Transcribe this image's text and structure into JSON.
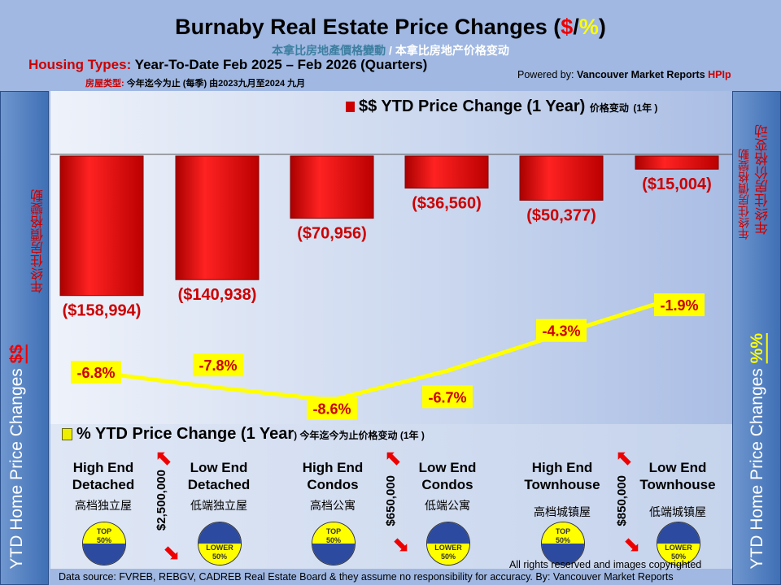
{
  "header": {
    "title": "Burnaby Real Estate Price Changes (",
    "title_dollar": "$",
    "title_slash": "/",
    "title_pct": "%",
    "title_end": ")",
    "subtitle_trad": "本拿比房地產價格變動",
    "subtitle_simp": " / 本拿比房地产价格变动",
    "housing_label": "Housing Types:",
    "housing_text": " Year-To-Date Feb 2025 – Feb 2026 (Quarters)",
    "cn_label": "房屋类型:",
    "cn_text": " 今年迄今为止  (每季) 由2023九月至2024 九月",
    "powered_prefix": "Powered by: ",
    "powered_name": "Vancouver Market Reports ",
    "powered_hpi": "HPIp"
  },
  "side": {
    "left_en": "YTD Home Price Changes ",
    "left_sym": "$$",
    "left_cn1": "年终住房價格變動",
    "left_cn2": "年终住房价格变动",
    "right_en": "YTD Home Price  Changes ",
    "right_sym": "%%",
    "right_cn1": "年终住房價格變動",
    "right_cn2": "年终住房价格变动"
  },
  "chart_data": {
    "type": "bar+line",
    "categories": [
      "High End Detached",
      "Low End Detached",
      "High End Condos",
      "Low End Condos",
      "High End Townhouse",
      "Low End Townhouse"
    ],
    "series": [
      {
        "name": "$$ YTD Price Change (1 Year)",
        "name_cn": "价格变动",
        "name_cn2": "(1年 )",
        "type": "bar",
        "color": "#e00000",
        "values": [
          -158994,
          -140938,
          -70956,
          -36560,
          -50377,
          -15004
        ],
        "labels": [
          "($158,994)",
          "($140,938)",
          "($70,956)",
          "($36,560)",
          "($50,377)",
          "($15,004)"
        ]
      },
      {
        "name": "% YTD Price Change (1 Year",
        "name_end": ")",
        "name_cn": " 今年迄今为止价格变动",
        "name_cn2": " (1年 )",
        "type": "line",
        "color": "#ffff00",
        "values": [
          -6.8,
          -7.8,
          -8.6,
          -6.7,
          -4.3,
          -1.9
        ],
        "labels": [
          "-6.8%",
          "-7.8%",
          "-8.6%",
          "-6.7%",
          "-4.3%",
          "-1.9%"
        ]
      }
    ]
  },
  "categories_cn": [
    "高档独立屋",
    "低端独立屋",
    "高档公寓",
    "低端公寓",
    "高档城镇屋",
    "低端城镇屋"
  ],
  "badges": {
    "top": "TOP",
    "top_pct": "50%",
    "lower": "LOWER",
    "lower_pct": "50%"
  },
  "thresholds": [
    "$2,500,000",
    "$650,000",
    "$850,000"
  ],
  "footer": {
    "rights": "All rights reserved and  images copyrighted",
    "source": "Data source: FVREB, REBGV, CADREB Real Estate Board & they assume no responsibility for accuracy. By: Vancouver Market Reports"
  }
}
